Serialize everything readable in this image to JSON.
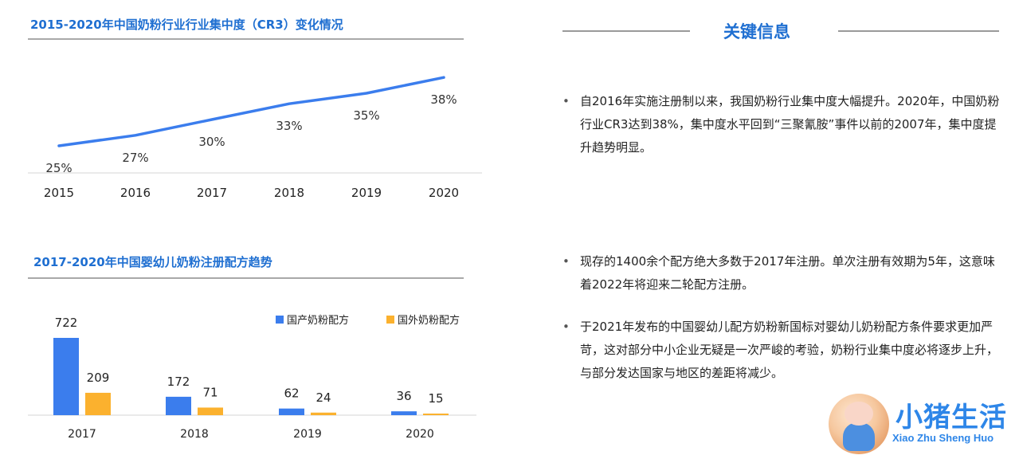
{
  "chart_data": [
    {
      "type": "line",
      "title": "2015-2020年中国奶粉行业行业集中度（CR3）变化情况",
      "categories": [
        "2015",
        "2016",
        "2017",
        "2018",
        "2019",
        "2020"
      ],
      "series": [
        {
          "values": [
            25,
            27,
            30,
            33,
            35,
            38
          ],
          "value_labels": [
            "25%",
            "27%",
            "30%",
            "33%",
            "35%",
            "38%"
          ],
          "color": "#3b7ded"
        }
      ],
      "ylim": [
        20,
        40
      ],
      "grid": false
    },
    {
      "type": "bar",
      "title": "2017-2020年中国婴幼儿奶粉注册配方趋势",
      "categories": [
        "2017",
        "2018",
        "2019",
        "2020"
      ],
      "series": [
        {
          "name": "国产奶粉配方",
          "values": [
            722,
            172,
            62,
            36
          ],
          "color": "#3b7ded"
        },
        {
          "name": "国外奶粉配方",
          "values": [
            209,
            71,
            24,
            15
          ],
          "color": "#fbb12e"
        }
      ],
      "ylim": [
        0,
        722
      ],
      "legend": "top-right",
      "grid": false
    }
  ],
  "key_info": {
    "heading": "关键信息",
    "bullets": [
      "自2016年实施注册制以来，我国奶粉行业集中度大幅提升。2020年，中国奶粉行业CR3达到38%，集中度水平回到“三聚氰胺”事件以前的2007年，集中度提升趋势明显。",
      "现存的1400余个配方绝大多数于2017年注册。单次注册有效期为5年，这意味着2022年将迎来二轮配方注册。",
      "于2021年发布的中国婴幼儿配方奶粉新国标对婴幼儿奶粉配方条件要求更加严苛，这对部分中小企业无疑是一次严峻的考验，奶粉行业集中度必将逐步上升，与部分发达国家与地区的差距将减少。"
    ]
  },
  "logo": {
    "name_zh": "小猪生活",
    "name_en": "Xiao Zhu Sheng Huo"
  }
}
